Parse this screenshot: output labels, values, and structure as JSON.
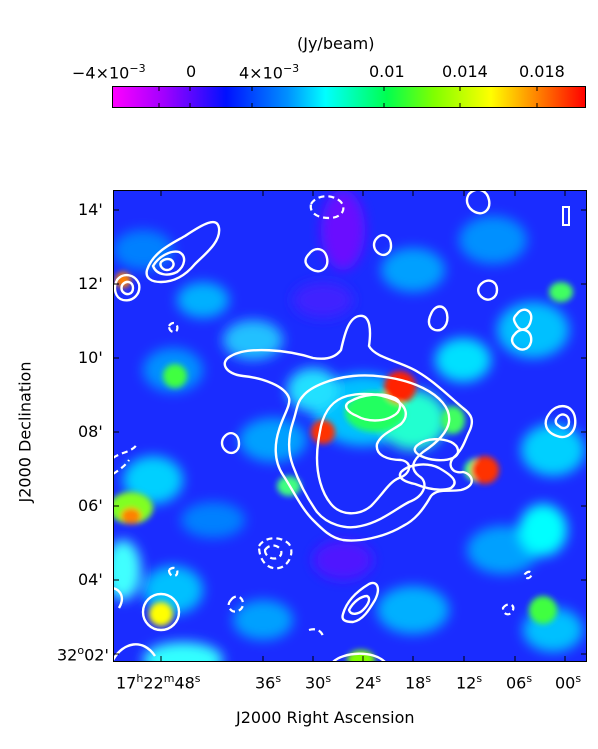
{
  "colorbar": {
    "unit_label": "(Jy/beam)",
    "ticks": [
      {
        "value": -0.004,
        "label_base": "−4×10",
        "label_exp": "−3"
      },
      {
        "value": 0,
        "label_base": "0",
        "label_exp": ""
      },
      {
        "value": 0.004,
        "label_base": "4×10",
        "label_exp": "−3"
      },
      {
        "value": 0.01,
        "label_base": "0.01",
        "label_exp": ""
      },
      {
        "value": 0.014,
        "label_base": "0.014",
        "label_exp": ""
      },
      {
        "value": 0.018,
        "label_base": "0.018",
        "label_exp": ""
      }
    ],
    "range": [
      -0.0055,
      0.0202
    ],
    "colormap": [
      "#ff00ff",
      "#a000ff",
      "#0010ff",
      "#0080ff",
      "#00ffff",
      "#00ff60",
      "#80ff00",
      "#ffff00",
      "#ff8000",
      "#ff0000"
    ]
  },
  "image": {
    "ylabel": "J2000 Declination",
    "xlabel": "J2000 Right Ascension",
    "dec_ticks": [
      {
        "label": "14'",
        "value_arcmin": 14
      },
      {
        "label": "12'",
        "value_arcmin": 12
      },
      {
        "label": "10'",
        "value_arcmin": 10
      },
      {
        "label": "08'",
        "value_arcmin": 8
      },
      {
        "label": "06'",
        "value_arcmin": 6
      },
      {
        "label": "04'",
        "value_arcmin": 4
      },
      {
        "label": "02'",
        "value_arcmin": 2,
        "prefix": "32",
        "prefix_sup": "o"
      }
    ],
    "ra_ticks": [
      {
        "h": "17",
        "m": "22",
        "s": "48"
      },
      {
        "s": "36"
      },
      {
        "s": "30"
      },
      {
        "s": "24"
      },
      {
        "s": "18"
      },
      {
        "s": "12"
      },
      {
        "s": "06"
      },
      {
        "s": "00"
      }
    ],
    "colors": {
      "background": "#1a2cff",
      "contour": "#ffffff",
      "frame": "#000000"
    }
  }
}
